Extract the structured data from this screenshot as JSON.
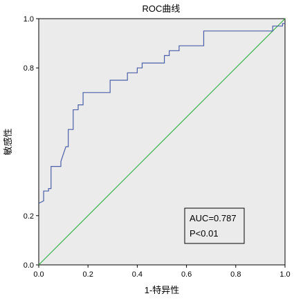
{
  "chart_data": {
    "type": "line",
    "title": "ROC曲线",
    "xlabel": "1-特异性",
    "ylabel": "敏感性",
    "xlim": [
      0.0,
      1.0
    ],
    "ylim": [
      0.0,
      1.0
    ],
    "xticks": [
      "0.0",
      "0.2",
      "0.4",
      "0.6",
      "0.8",
      "1.0"
    ],
    "xtick_values": [
      0.0,
      0.2,
      0.4,
      0.6,
      0.8,
      1.0
    ],
    "yticks": [
      "0.0",
      "0.2",
      "0.8",
      "1.0"
    ],
    "ytick_values": [
      0.0,
      0.2,
      0.8,
      1.0
    ],
    "grid": false,
    "plot_background": "#ebebeb",
    "series": [
      {
        "key": "roc",
        "color": "#4a5fa8",
        "x": [
          0.0,
          0.0,
          0.02,
          0.02,
          0.04,
          0.04,
          0.05,
          0.05,
          0.09,
          0.09,
          0.11,
          0.12,
          0.12,
          0.14,
          0.14,
          0.16,
          0.16,
          0.18,
          0.18,
          0.29,
          0.29,
          0.36,
          0.36,
          0.4,
          0.4,
          0.42,
          0.42,
          0.51,
          0.51,
          0.53,
          0.53,
          0.57,
          0.57,
          0.67,
          0.67,
          0.95,
          0.95,
          0.99,
          0.99,
          1.0
        ],
        "y": [
          0.25,
          0.25,
          0.26,
          0.3,
          0.3,
          0.31,
          0.31,
          0.4,
          0.4,
          0.42,
          0.48,
          0.48,
          0.55,
          0.55,
          0.63,
          0.63,
          0.65,
          0.65,
          0.7,
          0.7,
          0.75,
          0.75,
          0.78,
          0.78,
          0.8,
          0.8,
          0.82,
          0.82,
          0.85,
          0.85,
          0.87,
          0.87,
          0.89,
          0.89,
          0.95,
          0.95,
          0.97,
          0.97,
          0.98,
          0.98
        ]
      },
      {
        "key": "reference",
        "color": "#3cb34a",
        "x": [
          0.0,
          1.0
        ],
        "y": [
          0.0,
          1.0
        ]
      }
    ],
    "annotation": {
      "lines": [
        "AUC=0.787",
        "P<0.01"
      ],
      "placement": "bottom-right"
    }
  }
}
